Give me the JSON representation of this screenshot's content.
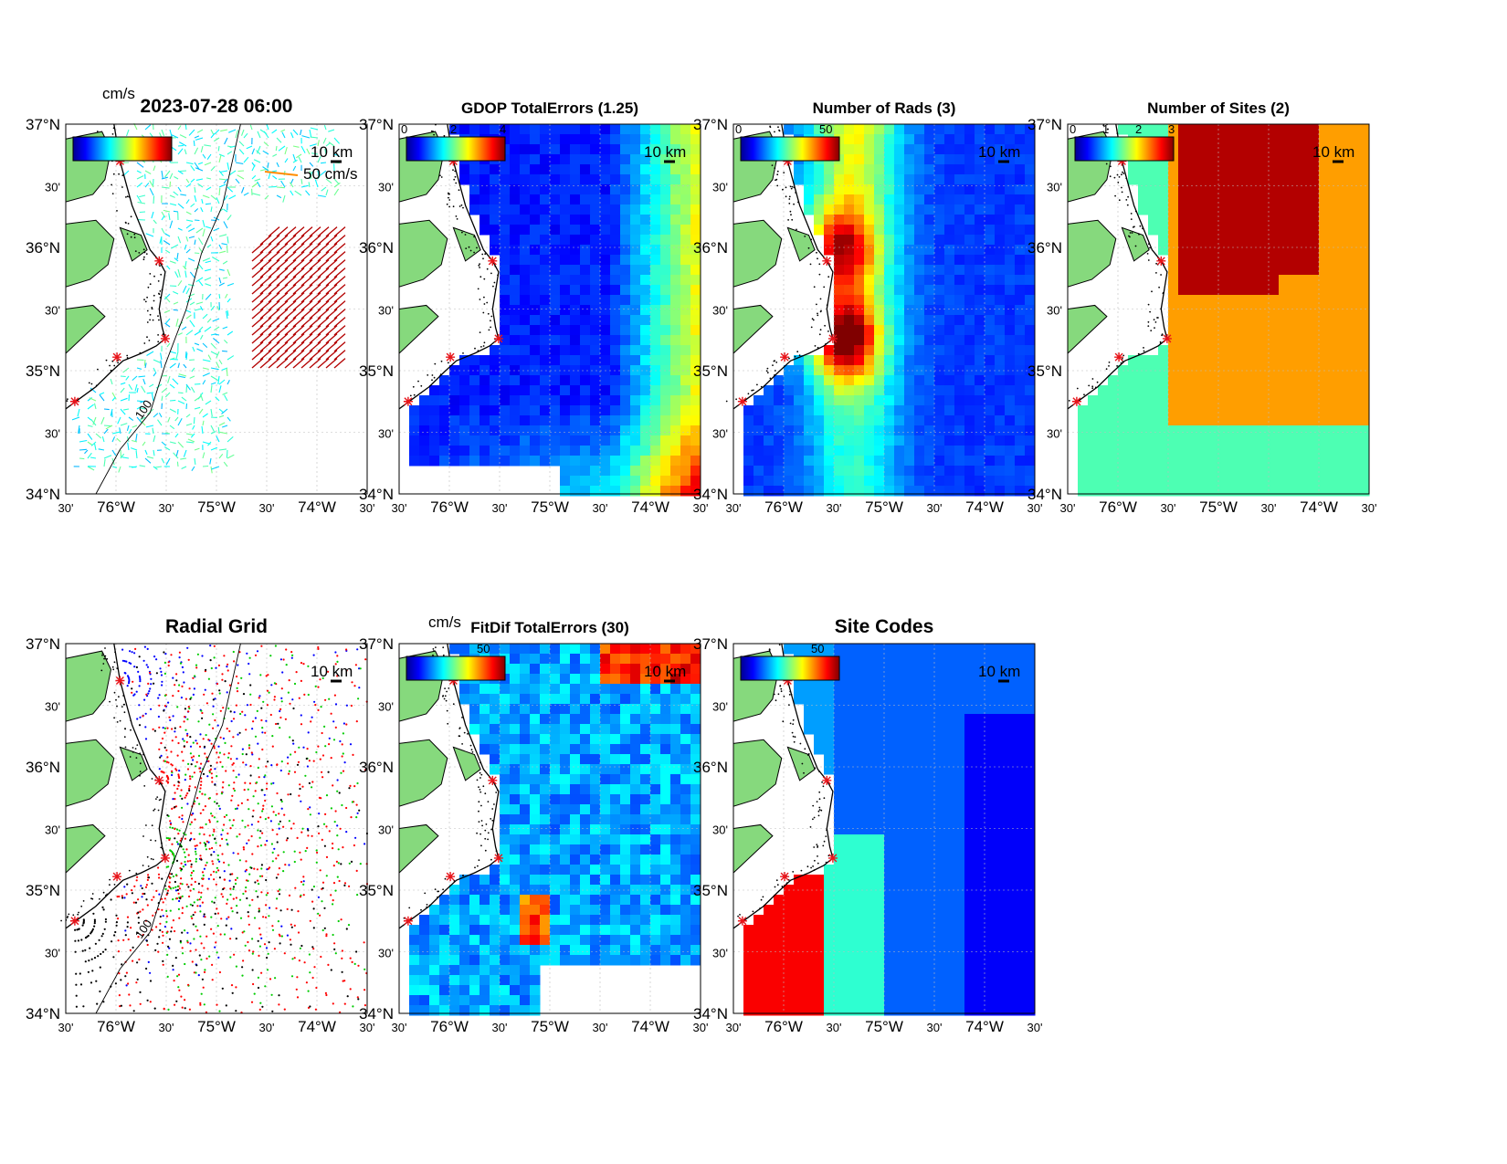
{
  "figure": {
    "panels": [
      {
        "id": "currents",
        "title": "2023-07-28 06:00",
        "colorbar_units": "cm/s",
        "colorbar_ticks": [],
        "scale_label": "10 km",
        "extra_label": "50 cm/s",
        "contour_label": "100",
        "kind": "vectors"
      },
      {
        "id": "gdop",
        "title": "GDOP TotalErrors (1.25)",
        "colorbar_units": "",
        "colorbar_ticks": [
          "0",
          "2",
          "4"
        ],
        "scale_label": "10 km",
        "contour_label": "1.25",
        "kind": "gdop"
      },
      {
        "id": "nrads",
        "title": "Number of Rads (3)",
        "colorbar_units": "",
        "colorbar_ticks": [
          "0",
          "50"
        ],
        "scale_label": "10 km",
        "contour_label": "",
        "kind": "nrads"
      },
      {
        "id": "nsites",
        "title": "Number of Sites (2)",
        "colorbar_units": "",
        "colorbar_ticks": [
          "0",
          "1",
          "2",
          "3"
        ],
        "scale_label": "10 km",
        "contour_label": "2",
        "kind": "nsites"
      },
      {
        "id": "radgrid",
        "title": "Radial Grid",
        "colorbar_units": "",
        "colorbar_ticks": [],
        "scale_label": "10 km",
        "contour_label": "100",
        "kind": "radgrid"
      },
      {
        "id": "fitdif",
        "title": "FitDif TotalErrors (30)",
        "colorbar_units": "cm/s",
        "colorbar_ticks": [
          "50"
        ],
        "scale_label": "10 km",
        "contour_label": "30",
        "kind": "fitdif"
      },
      {
        "id": "sitecodes",
        "title": "Site Codes",
        "colorbar_units": "",
        "colorbar_ticks": [
          "50"
        ],
        "scale_label": "10 km",
        "contour_label": "",
        "kind": "sitecodes"
      }
    ],
    "axes": {
      "lat_labels": [
        "37°N",
        "30'",
        "36°N",
        "30'",
        "35°N",
        "30'",
        "34°N"
      ],
      "lon_labels": [
        "30'",
        "76°W",
        "30'",
        "75°W",
        "30'",
        "74°W",
        "30'"
      ]
    },
    "colors": {
      "land": "#86d97d",
      "site_marker": "#e8141a",
      "grid": "#bdbdbd"
    }
  }
}
